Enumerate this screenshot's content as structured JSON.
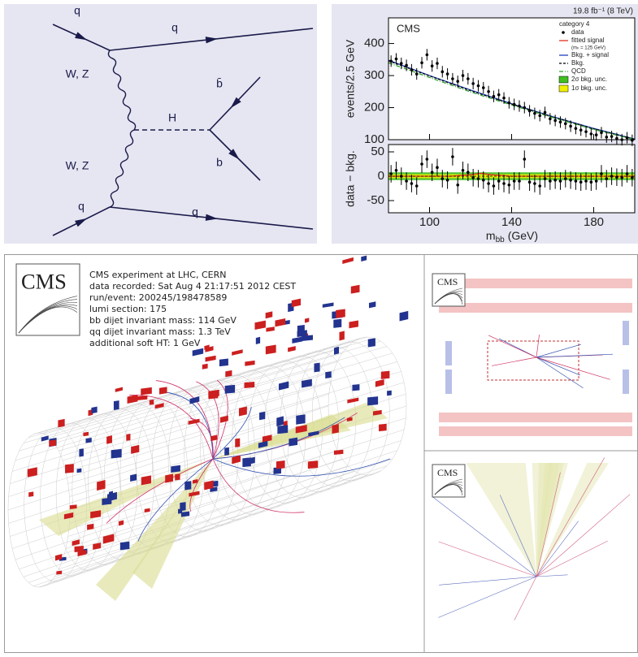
{
  "feynman": {
    "labels": [
      "q",
      "q",
      "W, Z",
      "H",
      "b̄",
      "b",
      "W, Z",
      "q",
      "q"
    ]
  },
  "chart_data": {
    "type": "errorbar",
    "lumi": "19.8 fb⁻¹ (8 TeV)",
    "experiment": "CMS",
    "ylabel": "events/2.5 GeV",
    "y2label": "data − bkg.",
    "xlabel": "m",
    "xlabel_sub": "bb",
    "xlabel_unit": "(GeV)",
    "legend_title": "category 4",
    "xlim": [
      80,
      200
    ],
    "xticks": [
      100,
      140,
      180
    ],
    "ylim": [
      100,
      480
    ],
    "yticks": [
      100,
      200,
      300,
      400
    ],
    "y2lim": [
      -75,
      65
    ],
    "y2ticks": [
      -50,
      0,
      50
    ],
    "x": [
      81.25,
      83.75,
      86.25,
      88.75,
      91.25,
      93.75,
      96.25,
      98.75,
      101.25,
      103.75,
      106.25,
      108.75,
      111.25,
      113.75,
      116.25,
      118.75,
      121.25,
      123.75,
      126.25,
      128.75,
      131.25,
      133.75,
      136.25,
      138.75,
      141.25,
      143.75,
      146.25,
      148.75,
      151.25,
      153.75,
      156.25,
      158.75,
      161.25,
      163.75,
      166.25,
      168.75,
      171.25,
      173.75,
      176.25,
      178.75,
      181.25,
      183.75,
      186.25,
      188.75,
      191.25,
      193.75,
      196.25,
      198.75
    ],
    "series": [
      {
        "name": "data",
        "color": "#000000",
        "error": 18,
        "values": [
          345,
          352,
          338,
          332,
          318,
          305,
          340,
          365,
          330,
          338,
          312,
          305,
          290,
          282,
          300,
          290,
          275,
          268,
          262,
          250,
          235,
          240,
          230,
          215,
          210,
          205,
          200,
          190,
          182,
          175,
          185,
          165,
          160,
          155,
          150,
          142,
          135,
          130,
          125,
          118,
          115,
          122,
          108,
          110,
          104,
          100,
          106,
          98
        ]
      },
      {
        "name": "data",
        "color": "#000000",
        "error": 18,
        "axis": "y2",
        "values": [
          5,
          12,
          0,
          -10,
          -15,
          -20,
          25,
          35,
          8,
          18,
          -5,
          -8,
          40,
          -18,
          12,
          8,
          -3,
          -5,
          -8,
          -15,
          -20,
          -10,
          -15,
          -18,
          -10,
          -10,
          35,
          -12,
          -15,
          -20,
          -5,
          -10,
          -8,
          -10,
          -5,
          -8,
          -10,
          -12,
          -10,
          -12,
          -10,
          5,
          -5,
          0,
          -2,
          -3,
          5,
          -3
        ]
      }
    ],
    "curves": [
      {
        "name": "fitted signal",
        "note": "(mₕ = 125 GeV)",
        "color": "#e03020",
        "dash": "none",
        "axis": "y2",
        "x": [
          80,
          110,
          120,
          125,
          130,
          140,
          200
        ],
        "values": [
          0,
          0,
          3,
          6,
          3,
          0,
          0
        ]
      },
      {
        "name": "Bkg. + signal",
        "color": "#2040c0",
        "dash": "none",
        "x": [
          80,
          100,
          120,
          140,
          160,
          180,
          200
        ],
        "values": [
          348,
          300,
          255,
          212,
          172,
          135,
          102
        ]
      },
      {
        "name": "Bkg.",
        "color": "#000000",
        "dash": "3,2",
        "x": [
          80,
          100,
          120,
          140,
          160,
          180,
          200
        ],
        "values": [
          346,
          299,
          253,
          211,
          171,
          134,
          101
        ]
      },
      {
        "name": "QCD",
        "color": "#30a030",
        "dash": "5,2,1,2",
        "x": [
          80,
          100,
          120,
          140,
          160,
          180,
          200
        ],
        "values": [
          340,
          294,
          249,
          208,
          169,
          132,
          100
        ]
      }
    ],
    "bands": [
      {
        "name": "2σ bkg. unc.",
        "color": "#40c020",
        "half_width": 8
      },
      {
        "name": "1σ bkg. unc.",
        "color": "#f0f000",
        "half_width": 4
      }
    ]
  },
  "event_display": {
    "logo": "CMS",
    "info": [
      "CMS experiment at LHC, CERN",
      "data recorded: Sat Aug 4 21:17:51 2012 CEST",
      "run/event: 200245/198478589",
      "lumi section: 175",
      "bb dijet invariant mass: 114 GeV",
      "qq dijet invariant mass: 1.3 TeV",
      "additional soft HT: 1 GeV"
    ],
    "side_logos": [
      "CMS",
      "CMS"
    ]
  }
}
